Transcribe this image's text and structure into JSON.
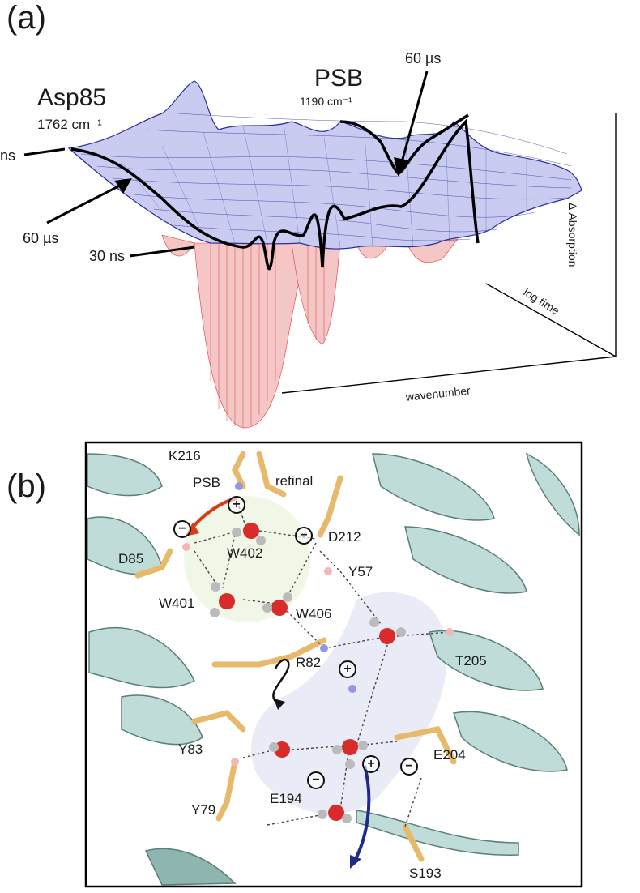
{
  "panel_a": {
    "tag": "(a)",
    "asp85": {
      "name": "Asp85",
      "wavenumber": "1762 cm⁻¹"
    },
    "psb": {
      "name": "PSB",
      "wavenumber": "1190 cm⁻¹"
    },
    "annotations": {
      "ns_left": "ns",
      "t60_left": "60 µs",
      "t30": "30 ns",
      "t60_top": "60 µs"
    },
    "axes": {
      "z": "Δ Absorption",
      "depth": "log time",
      "x": "wavenumber"
    }
  },
  "panel_b": {
    "tag": "(b)",
    "residues": {
      "k216": "K216",
      "psb": "PSB",
      "retinal": "retinal",
      "d85": "D85",
      "w402": "W402",
      "d212": "D212",
      "y57": "Y57",
      "w401": "W401",
      "w406": "W406",
      "r82": "R82",
      "t205": "T205",
      "y83": "Y83",
      "e204": "E204",
      "y79": "Y79",
      "e194": "E194",
      "s193": "S193"
    },
    "charges": {
      "minus": "−",
      "plus": "+"
    }
  }
}
